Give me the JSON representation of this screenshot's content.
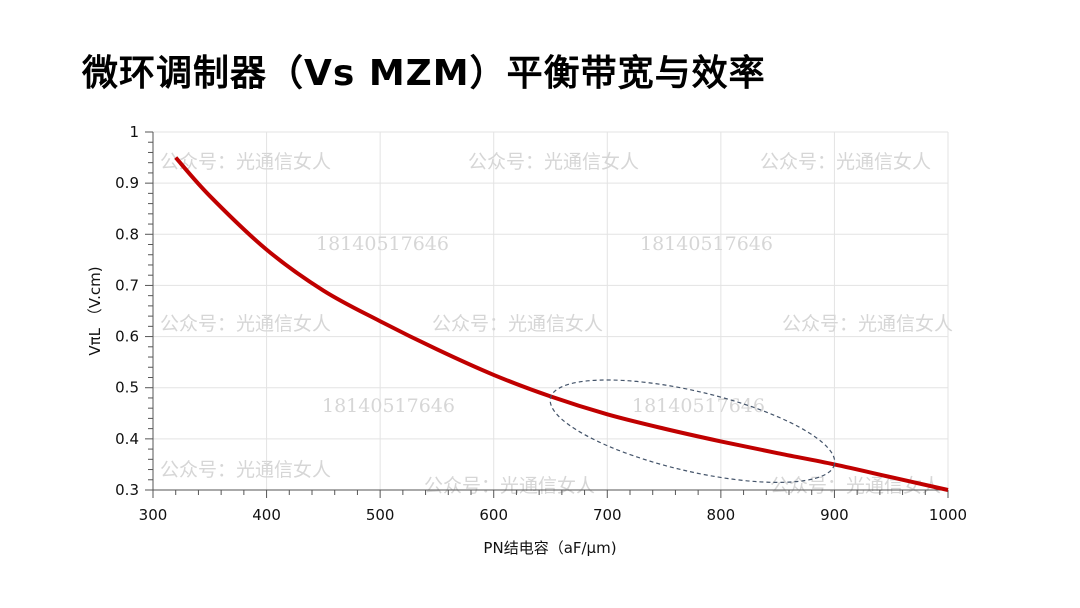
{
  "title": "微环调制器（Vs MZM）平衡带宽与效率",
  "watermarks": {
    "account": "公众号：光通信女人",
    "phone": "18140517646"
  },
  "colors": {
    "curve": "#c00000",
    "ellipse": "#44546a",
    "grid": "#e3e3e3"
  },
  "chart_data": {
    "type": "line",
    "title": "微环调制器（Vs MZM）平衡带宽与效率",
    "xlabel": "PN结电容（aF/μm)",
    "ylabel": "VπL （V.cm)",
    "xlim": [
      300,
      1000
    ],
    "ylim": [
      0.3,
      1
    ],
    "xticks": [
      300,
      400,
      500,
      600,
      700,
      800,
      900,
      1000
    ],
    "yticks": [
      0.3,
      0.4,
      0.5,
      0.6,
      0.7,
      0.8,
      0.9,
      1
    ],
    "ytick_labels": [
      "0.3",
      "0.4",
      "0.5",
      "0.6",
      "0.7",
      "0.8",
      "0.9",
      "1"
    ],
    "grid": true,
    "series": [
      {
        "name": "VπL",
        "x": [
          320,
          350,
          400,
          450,
          500,
          550,
          600,
          650,
          700,
          750,
          800,
          850,
          900,
          950,
          1000
        ],
        "y": [
          0.95,
          0.875,
          0.77,
          0.69,
          0.63,
          0.575,
          0.525,
          0.483,
          0.448,
          0.42,
          0.395,
          0.372,
          0.35,
          0.325,
          0.3
        ]
      }
    ],
    "annotations": [
      {
        "type": "dashed-ellipse",
        "x_range": [
          650,
          900
        ],
        "y_range": [
          0.35,
          0.48
        ]
      }
    ]
  }
}
